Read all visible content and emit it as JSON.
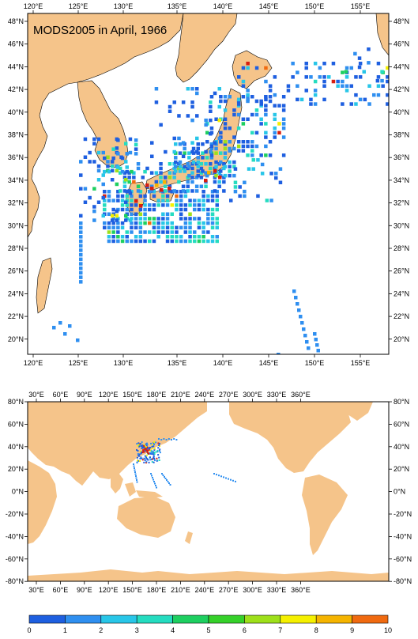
{
  "top_map": {
    "title": "MODS2005 in April, 1966",
    "x_ticks_top": [
      "120°E",
      "125°E",
      "130°E",
      "135°E",
      "140°E",
      "145°E",
      "150°E",
      "155°E"
    ],
    "x_ticks_bottom": [
      "120°E",
      "125°E",
      "130°E",
      "135°E",
      "140°E",
      "145°E",
      "150°E",
      "155°E"
    ],
    "y_ticks_left": [
      "48°N",
      "46°N",
      "44°N",
      "42°N",
      "40°N",
      "38°N",
      "36°N",
      "34°N",
      "32°N",
      "30°N",
      "28°N",
      "26°N",
      "24°N",
      "22°N",
      "20°N"
    ],
    "y_ticks_right": [
      "48°N",
      "46°N",
      "44°N",
      "42°N",
      "40°N",
      "38°N",
      "36°N",
      "34°N",
      "32°N",
      "30°N",
      "28°N",
      "26°N",
      "24°N",
      "22°N",
      "20°N"
    ]
  },
  "bottom_map": {
    "x_ticks_top": [
      "30°E",
      "60°E",
      "90°E",
      "120°E",
      "150°E",
      "180°E",
      "210°E",
      "240°E",
      "270°E",
      "300°E",
      "330°E",
      "360°E"
    ],
    "x_ticks_bottom": [
      "30°E",
      "60°E",
      "90°E",
      "120°E",
      "150°E",
      "180°E",
      "210°E",
      "240°E",
      "270°E",
      "300°E",
      "330°E",
      "360°E"
    ],
    "y_ticks_left": [
      "80°N",
      "60°N",
      "40°N",
      "20°N",
      "0°N",
      "-20°N",
      "-40°N",
      "-60°N",
      "-80°N"
    ],
    "y_ticks_right": [
      "80°N",
      "60°N",
      "40°N",
      "20°N",
      "0°N",
      "-20°N",
      "-40°N",
      "-60°N",
      "-80°N"
    ]
  },
  "colorbar": {
    "labels": [
      "0",
      "1",
      "2",
      "3",
      "4",
      "5",
      "6",
      "7",
      "8",
      "9",
      "10"
    ],
    "colors": [
      "#1e5fe0",
      "#2f8ff0",
      "#28c6e8",
      "#25dcc0",
      "#1ecf60",
      "#35d12a",
      "#9ee01a",
      "#f5f000",
      "#f5b400",
      "#f06a10",
      "#d81e10"
    ]
  },
  "colors": {
    "land": "#f5c48a",
    "ocean": "#ffffff",
    "frame": "#000000"
  }
}
